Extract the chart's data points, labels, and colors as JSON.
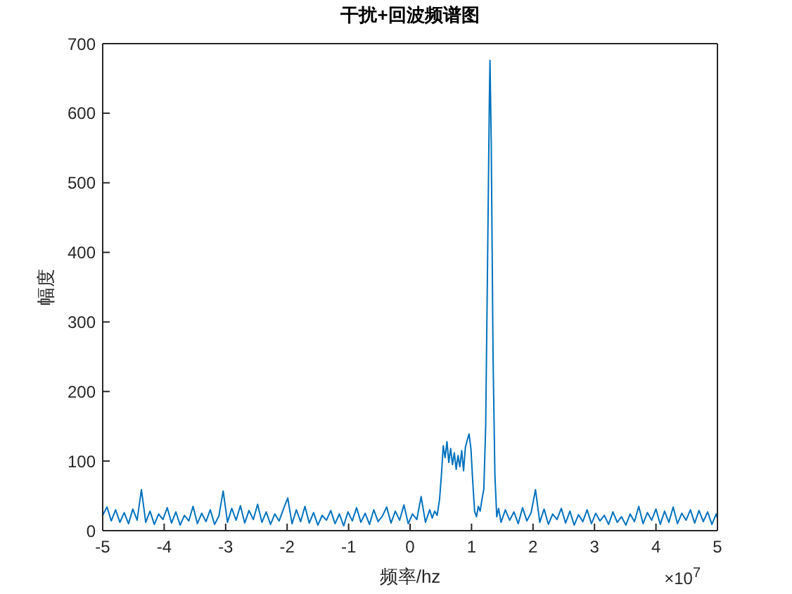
{
  "chart_data": {
    "type": "line",
    "title": "干扰+回波频谱图",
    "xlabel": "频率/hz",
    "ylabel": "幅度",
    "annotations": [
      "×10$^{7}$"
    ],
    "x": [
      -5.0,
      -4.93,
      -4.86,
      -4.79,
      -4.72,
      -4.65,
      -4.58,
      -4.51,
      -4.44,
      -4.37,
      -4.3,
      -4.23,
      -4.16,
      -4.09,
      -4.02,
      -3.95,
      -3.88,
      -3.81,
      -3.74,
      -3.67,
      -3.6,
      -3.53,
      -3.46,
      -3.39,
      -3.32,
      -3.25,
      -3.18,
      -3.11,
      -3.04,
      -2.97,
      -2.9,
      -2.83,
      -2.76,
      -2.69,
      -2.62,
      -2.55,
      -2.48,
      -2.41,
      -2.34,
      -2.27,
      -2.2,
      -2.13,
      -2.06,
      -1.99,
      -1.92,
      -1.85,
      -1.78,
      -1.71,
      -1.64,
      -1.57,
      -1.5,
      -1.43,
      -1.36,
      -1.29,
      -1.22,
      -1.15,
      -1.08,
      -1.01,
      -0.94,
      -0.87,
      -0.8,
      -0.73,
      -0.66,
      -0.59,
      -0.52,
      -0.45,
      -0.38,
      -0.31,
      -0.24,
      -0.17,
      -0.1,
      -0.03,
      0.04,
      0.11,
      0.18,
      0.25,
      0.32,
      0.36,
      0.4,
      0.44,
      0.48,
      0.51,
      0.54,
      0.57,
      0.6,
      0.63,
      0.66,
      0.69,
      0.72,
      0.75,
      0.78,
      0.81,
      0.84,
      0.87,
      0.9,
      0.93,
      0.96,
      0.99,
      1.02,
      1.05,
      1.08,
      1.11,
      1.14,
      1.17,
      1.2,
      1.23,
      1.26,
      1.29,
      1.3,
      1.32,
      1.35,
      1.38,
      1.41,
      1.44,
      1.48,
      1.55,
      1.62,
      1.69,
      1.76,
      1.83,
      1.9,
      1.97,
      2.04,
      2.11,
      2.18,
      2.25,
      2.32,
      2.39,
      2.46,
      2.53,
      2.6,
      2.67,
      2.74,
      2.81,
      2.88,
      2.95,
      3.02,
      3.09,
      3.16,
      3.23,
      3.3,
      3.37,
      3.44,
      3.51,
      3.58,
      3.65,
      3.72,
      3.79,
      3.86,
      3.93,
      4.0,
      4.07,
      4.14,
      4.21,
      4.28,
      4.35,
      4.42,
      4.49,
      4.56,
      4.63,
      4.7,
      4.77,
      4.84,
      4.91,
      4.98,
      5.0
    ],
    "series": [
      {
        "color": "#0072bd",
        "values": [
          22,
          34,
          14,
          30,
          12,
          26,
          10,
          31,
          15,
          59,
          12,
          28,
          9,
          24,
          16,
          33,
          11,
          27,
          8,
          22,
          14,
          35,
          10,
          25,
          13,
          30,
          9,
          21,
          57,
          12,
          32,
          15,
          36,
          11,
          29,
          16,
          38,
          12,
          27,
          9,
          24,
          14,
          31,
          47,
          10,
          30,
          13,
          35,
          11,
          26,
          8,
          22,
          15,
          29,
          10,
          24,
          7,
          27,
          14,
          33,
          12,
          25,
          9,
          30,
          13,
          21,
          34,
          11,
          28,
          15,
          37,
          10,
          24,
          16,
          49,
          12,
          30,
          18,
          28,
          22,
          45,
          80,
          122,
          105,
          128,
          98,
          118,
          95,
          112,
          88,
          108,
          92,
          115,
          86,
          120,
          130,
          139,
          118,
          70,
          28,
          20,
          35,
          28,
          45,
          60,
          150,
          380,
          620,
          676,
          560,
          250,
          80,
          20,
          32,
          12,
          30,
          15,
          27,
          10,
          33,
          14,
          26,
          59,
          12,
          31,
          9,
          24,
          16,
          32,
          11,
          28,
          8,
          23,
          13,
          30,
          10,
          25,
          14,
          22,
          9,
          27,
          12,
          20,
          8,
          24,
          13,
          35,
          10,
          26,
          15,
          31,
          9,
          28,
          12,
          34,
          10,
          25,
          15,
          30,
          11,
          29,
          13,
          27,
          9,
          24,
          18
        ]
      }
    ],
    "xlim": [
      -5,
      5
    ],
    "xticks": [
      -5,
      -4,
      -3,
      -2,
      -1,
      0,
      1,
      2,
      3,
      4,
      5
    ],
    "ylim": [
      0,
      700
    ],
    "yticks": [
      0,
      100,
      200,
      300,
      400,
      500,
      600,
      700
    ],
    "marker": "none",
    "line_style": "solid"
  }
}
